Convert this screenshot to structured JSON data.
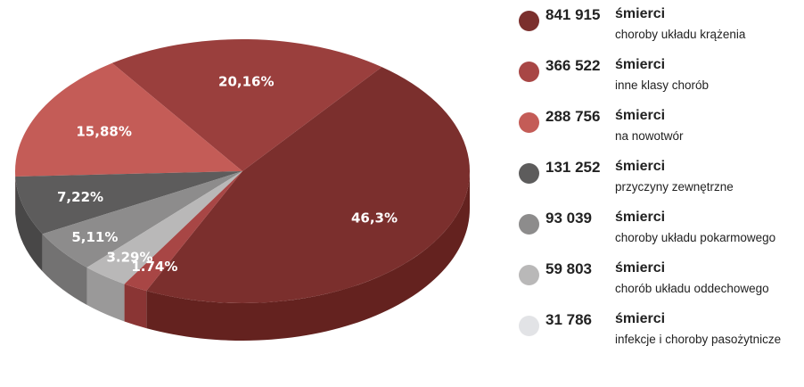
{
  "chart_data": {
    "type": "pie",
    "title": "",
    "slices": [
      {
        "label": "46,3%",
        "value": 46.3,
        "color": "#7b2f2d",
        "side": "#64221f"
      },
      {
        "label": "20,16%",
        "value": 20.16,
        "color": "#9a3f3d",
        "side": "#7c2f2d"
      },
      {
        "label": "15,88%",
        "value": 15.88,
        "color": "#c45c57",
        "side": "#a04744"
      },
      {
        "label": "7,22%",
        "value": 7.22,
        "color": "#5d5c5c",
        "side": "#484747"
      },
      {
        "label": "5,11%",
        "value": 5.11,
        "color": "#8d8c8c",
        "side": "#737272"
      },
      {
        "label": "3.29%",
        "value": 3.29,
        "color": "#b9b8b8",
        "side": "#9a9999"
      },
      {
        "label": "1.74%",
        "value": 1.74,
        "color": "#a84645",
        "side": "#8a3534"
      }
    ]
  },
  "legend": [
    {
      "value": "841 915",
      "word": "śmierci",
      "desc": "choroby układu krążenia",
      "color": "#7b2f2d"
    },
    {
      "value": "366 522",
      "word": "śmierci",
      "desc": "inne klasy chorób",
      "color": "#a84645"
    },
    {
      "value": "288 756",
      "word": "śmierci",
      "desc": "na nowotwór",
      "color": "#c45c57"
    },
    {
      "value": "131 252",
      "word": "śmierci",
      "desc": "przyczyny zewnętrzne",
      "color": "#5d5c5c"
    },
    {
      "value": "93 039",
      "word": "śmierci",
      "desc": "choroby układu pokarmowego",
      "color": "#8d8c8c"
    },
    {
      "value": "59 803",
      "word": "śmierci",
      "desc": "chorób układu oddechowego",
      "color": "#b9b8b8"
    },
    {
      "value": "31 786",
      "word": "śmierci",
      "desc": "infekcje i choroby pasożytnicze",
      "color": "#e2e3e6"
    }
  ]
}
